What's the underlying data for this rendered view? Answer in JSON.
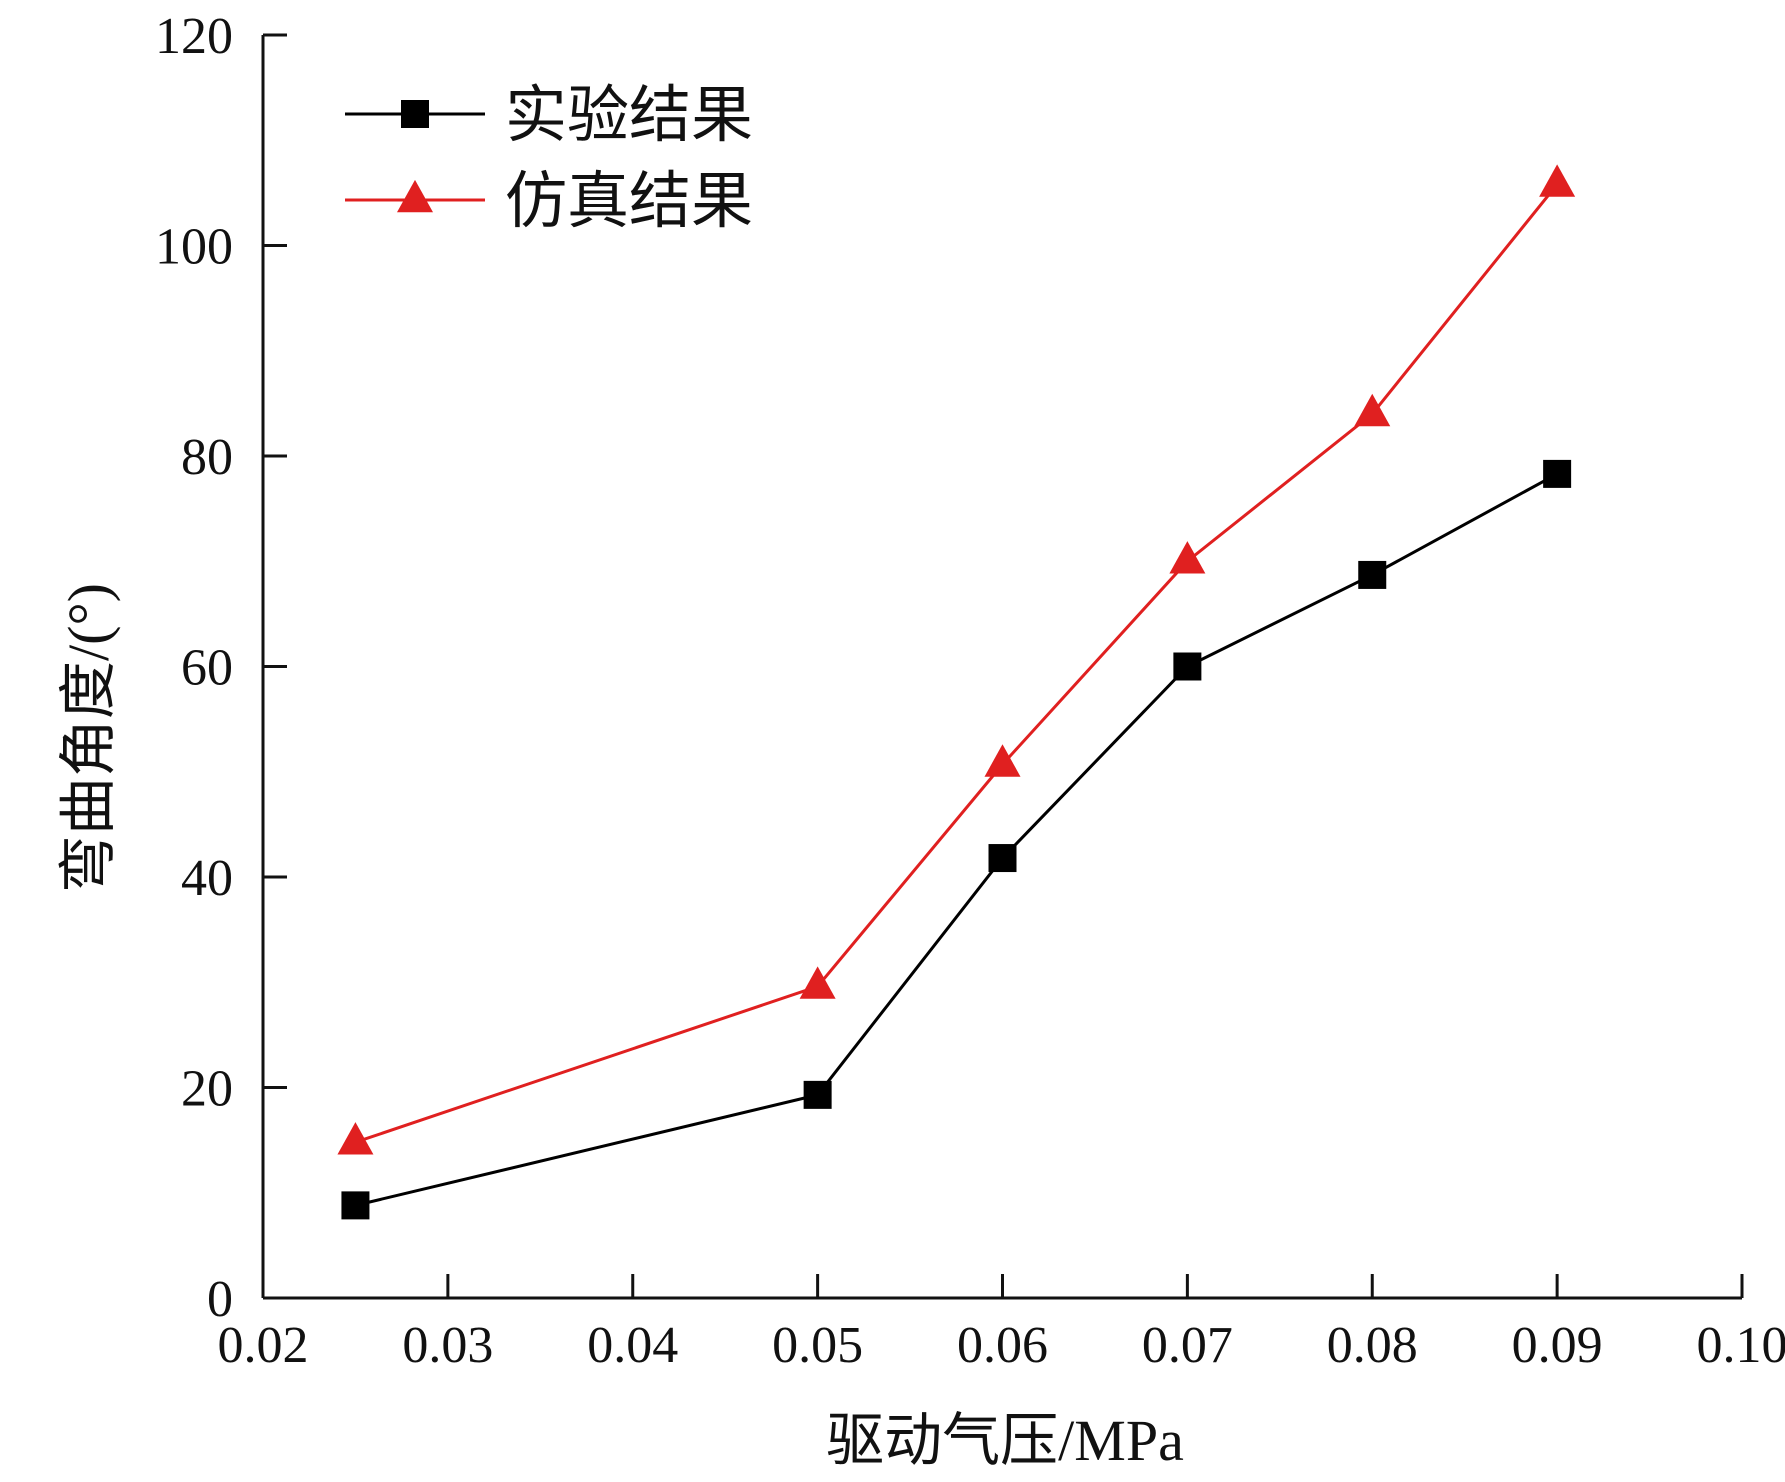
{
  "chart_data": {
    "type": "line",
    "title": "",
    "xlabel": "驱动气压/MPa",
    "ylabel": "弯曲角度/(°)",
    "xlim": [
      0.02,
      0.1
    ],
    "ylim": [
      0,
      120
    ],
    "xticks": [
      "0.02",
      "0.03",
      "0.04",
      "0.05",
      "0.06",
      "0.07",
      "0.08",
      "0.09",
      "0.10"
    ],
    "yticks": [
      "0",
      "20",
      "40",
      "60",
      "80",
      "100",
      "120"
    ],
    "grid": false,
    "legend_position": "top-left",
    "series": [
      {
        "name": "实验结果",
        "color": "#000000",
        "marker": "square",
        "x": [
          0.025,
          0.05,
          0.06,
          0.07,
          0.08,
          0.09
        ],
        "y": [
          8.8,
          19.3,
          41.8,
          60.0,
          68.7,
          78.3
        ]
      },
      {
        "name": "仿真结果",
        "color": "#e02020",
        "marker": "triangle",
        "x": [
          0.025,
          0.05,
          0.06,
          0.07,
          0.08,
          0.09
        ],
        "y": [
          14.8,
          29.6,
          50.7,
          70.0,
          84.0,
          105.8
        ]
      }
    ]
  }
}
